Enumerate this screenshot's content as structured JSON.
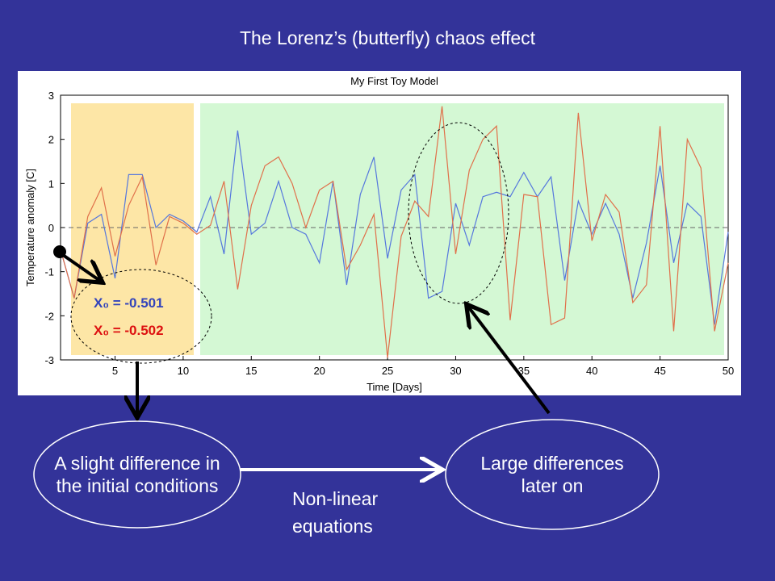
{
  "slide": {
    "title": "The Lorenz’s (butterfly) chaos effect",
    "left_bubble": [
      "A slight difference in",
      "the initial conditions"
    ],
    "right_bubble": [
      "Large differences",
      "later on"
    ],
    "arrow_label": [
      "Non-linear",
      "equations"
    ]
  },
  "chart_data": {
    "type": "line",
    "title": "My First Toy Model",
    "x_label": "Time [Days]",
    "y_label": "Temperature anomaly [C]",
    "x": [
      1,
      2,
      3,
      4,
      5,
      6,
      7,
      8,
      9,
      10,
      11,
      12,
      13,
      14,
      15,
      16,
      17,
      18,
      19,
      20,
      21,
      22,
      23,
      24,
      25,
      26,
      27,
      28,
      29,
      30,
      31,
      32,
      33,
      34,
      35,
      36,
      37,
      38,
      39,
      40,
      41,
      42,
      43,
      44,
      45,
      46,
      47,
      48,
      49,
      50
    ],
    "series": [
      {
        "name": "X₀ = -0.501",
        "color": "#5577dd",
        "values": [
          -0.5,
          -1.6,
          0.1,
          0.3,
          -1.15,
          1.2,
          1.2,
          0,
          0.3,
          0.15,
          -0.1,
          0.7,
          -0.6,
          2.2,
          -0.15,
          0.1,
          1.05,
          0,
          -0.15,
          -0.8,
          1.05,
          -1.3,
          0.75,
          1.6,
          -0.7,
          0.85,
          1.2,
          -1.6,
          -1.45,
          0.55,
          -0.4,
          0.7,
          0.8,
          0.7,
          1.25,
          0.7,
          1.15,
          -1.2,
          0.6,
          -0.15,
          0.55,
          -0.15,
          -1.6,
          -0.35,
          1.4,
          -0.8,
          0.55,
          0.25,
          -2.2,
          -0.1
        ]
      },
      {
        "name": "X₀ = -0.502",
        "color": "#e0704a",
        "values": [
          -0.5,
          -1.6,
          0.25,
          0.9,
          -0.65,
          0.5,
          1.15,
          -0.85,
          0.25,
          0.1,
          -0.15,
          0.05,
          1.05,
          -1.4,
          0.5,
          1.4,
          1.6,
          1.0,
          0.0,
          0.85,
          1.05,
          -0.95,
          -0.4,
          0.3,
          -2.95,
          -0.2,
          0.6,
          0.25,
          2.75,
          -0.6,
          1.3,
          2.0,
          2.3,
          -2.1,
          0.75,
          0.7,
          -2.2,
          -2.05,
          2.6,
          -0.3,
          0.75,
          0.35,
          -1.7,
          -1.3,
          2.3,
          -2.35,
          2.0,
          1.35,
          -2.35,
          -0.8
        ]
      }
    ],
    "xlim": [
      1,
      50
    ],
    "ylim": [
      -3,
      3
    ],
    "xticks": [
      5,
      10,
      15,
      20,
      25,
      30,
      35,
      40,
      45,
      50
    ],
    "yticks": [
      -3,
      -2,
      -1,
      0,
      1,
      2,
      3
    ]
  }
}
